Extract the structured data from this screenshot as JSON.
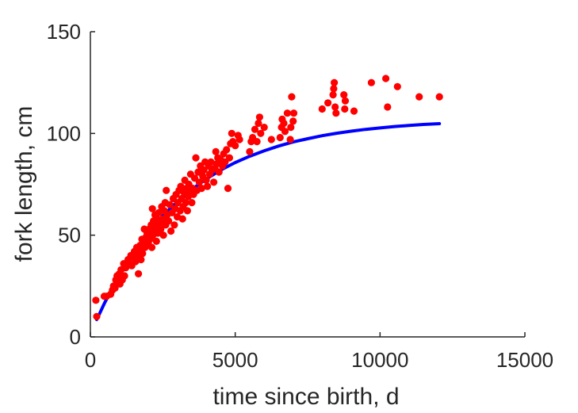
{
  "chart_data": {
    "type": "scatter",
    "title": "",
    "xlabel": "time since birth, d",
    "ylabel": "fork length, cm",
    "xlim": [
      0,
      15000
    ],
    "ylim": [
      0,
      150
    ],
    "xticks": [
      0,
      5000,
      10000,
      15000
    ],
    "yticks": [
      0,
      50,
      100,
      150
    ],
    "xtick_labels": [
      "0",
      "5000",
      "10000",
      "15000"
    ],
    "ytick_labels": [
      "0",
      "50",
      "100",
      "150"
    ],
    "grid": false,
    "legend": "none",
    "colors": {
      "data": "#ff0000",
      "fit": "#0000ff",
      "axis": "#262626"
    },
    "series": [
      {
        "kind": "scatter",
        "points": [
          [
            190,
            18
          ],
          [
            220,
            10
          ],
          [
            480,
            20
          ],
          [
            560,
            20
          ],
          [
            700,
            21
          ],
          [
            760,
            23
          ],
          [
            800,
            25
          ],
          [
            850,
            24
          ],
          [
            880,
            28
          ],
          [
            920,
            30
          ],
          [
            950,
            27
          ],
          [
            1000,
            31
          ],
          [
            1020,
            26
          ],
          [
            1060,
            33
          ],
          [
            1100,
            28
          ],
          [
            1150,
            36
          ],
          [
            1180,
            30
          ],
          [
            1220,
            34
          ],
          [
            1260,
            35
          ],
          [
            1300,
            38
          ],
          [
            1350,
            36
          ],
          [
            1400,
            40
          ],
          [
            1430,
            35
          ],
          [
            1480,
            39
          ],
          [
            1520,
            42
          ],
          [
            1560,
            37
          ],
          [
            1600,
            44
          ],
          [
            1640,
            40
          ],
          [
            1660,
            31
          ],
          [
            1690,
            43
          ],
          [
            1720,
            45
          ],
          [
            1750,
            38
          ],
          [
            1780,
            48
          ],
          [
            1800,
            41
          ],
          [
            1830,
            46
          ],
          [
            1860,
            53
          ],
          [
            1890,
            44
          ],
          [
            1920,
            49
          ],
          [
            1960,
            51
          ],
          [
            2000,
            46
          ],
          [
            2030,
            53
          ],
          [
            2060,
            48
          ],
          [
            2100,
            55
          ],
          [
            2120,
            44
          ],
          [
            2140,
            63
          ],
          [
            2160,
            50
          ],
          [
            2180,
            57
          ],
          [
            2200,
            52
          ],
          [
            2230,
            60
          ],
          [
            2260,
            54
          ],
          [
            2280,
            47
          ],
          [
            2300,
            58
          ],
          [
            2330,
            51
          ],
          [
            2360,
            61
          ],
          [
            2400,
            56
          ],
          [
            2430,
            53
          ],
          [
            2460,
            64
          ],
          [
            2500,
            58
          ],
          [
            2520,
            50
          ],
          [
            2550,
            62
          ],
          [
            2580,
            66
          ],
          [
            2600,
            55
          ],
          [
            2620,
            72
          ],
          [
            2650,
            60
          ],
          [
            2700,
            57
          ],
          [
            2740,
            65
          ],
          [
            2780,
            52
          ],
          [
            2820,
            61
          ],
          [
            2860,
            68
          ],
          [
            2900,
            55
          ],
          [
            2930,
            63
          ],
          [
            2960,
            70
          ],
          [
            3000,
            59
          ],
          [
            3020,
            66
          ],
          [
            3060,
            72
          ],
          [
            3100,
            62
          ],
          [
            3120,
            74
          ],
          [
            3150,
            68
          ],
          [
            3180,
            58
          ],
          [
            3200,
            64
          ],
          [
            3230,
            71
          ],
          [
            3260,
            77
          ],
          [
            3290,
            66
          ],
          [
            3320,
            73
          ],
          [
            3350,
            62
          ],
          [
            3380,
            69
          ],
          [
            3400,
            75
          ],
          [
            3430,
            71
          ],
          [
            3460,
            80
          ],
          [
            3500,
            66
          ],
          [
            3530,
            73
          ],
          [
            3560,
            70
          ],
          [
            3600,
            78
          ],
          [
            3640,
            88
          ],
          [
            3680,
            72
          ],
          [
            3720,
            81
          ],
          [
            3760,
            76
          ],
          [
            3800,
            84
          ],
          [
            3840,
            73
          ],
          [
            3880,
            79
          ],
          [
            3920,
            82
          ],
          [
            3960,
            86
          ],
          [
            4000,
            77
          ],
          [
            4040,
            74
          ],
          [
            4080,
            84
          ],
          [
            4120,
            80
          ],
          [
            4160,
            86
          ],
          [
            4200,
            82
          ],
          [
            4260,
            76
          ],
          [
            4300,
            83
          ],
          [
            4330,
            91
          ],
          [
            4360,
            85
          ],
          [
            4400,
            88
          ],
          [
            4440,
            81
          ],
          [
            4500,
            87
          ],
          [
            4560,
            84
          ],
          [
            4600,
            90
          ],
          [
            4650,
            86
          ],
          [
            4700,
            92
          ],
          [
            4750,
            73
          ],
          [
            4800,
            88
          ],
          [
            4840,
            95
          ],
          [
            4880,
            100
          ],
          [
            4920,
            96
          ],
          [
            5000,
            94
          ],
          [
            5100,
            99
          ],
          [
            5150,
            97
          ],
          [
            5500,
            91
          ],
          [
            5550,
            96
          ],
          [
            5600,
            98
          ],
          [
            5680,
            102
          ],
          [
            5750,
            96
          ],
          [
            5800,
            105
          ],
          [
            5840,
            108
          ],
          [
            5880,
            100
          ],
          [
            6000,
            103
          ],
          [
            6250,
            97
          ],
          [
            6550,
            98
          ],
          [
            6600,
            103
          ],
          [
            6620,
            107
          ],
          [
            6680,
            105
          ],
          [
            6720,
            101
          ],
          [
            6800,
            110
          ],
          [
            6900,
            97
          ],
          [
            6920,
            103
          ],
          [
            6950,
            118
          ],
          [
            7000,
            106
          ],
          [
            7020,
            110
          ],
          [
            8000,
            112
          ],
          [
            8200,
            115
          ],
          [
            8380,
            119
          ],
          [
            8400,
            122
          ],
          [
            8420,
            125
          ],
          [
            8450,
            113
          ],
          [
            8480,
            110
          ],
          [
            8750,
            119
          ],
          [
            8780,
            112
          ],
          [
            8800,
            116
          ],
          [
            9100,
            111
          ],
          [
            9700,
            125
          ],
          [
            10200,
            127
          ],
          [
            10260,
            113
          ],
          [
            10600,
            123
          ],
          [
            11350,
            118
          ],
          [
            12050,
            118
          ]
        ]
      },
      {
        "kind": "line",
        "model": "von Bertalanffy growth curve",
        "points": [
          [
            220,
            8.5
          ],
          [
            500,
            17
          ],
          [
            1000,
            30.3
          ],
          [
            1500,
            41.6
          ],
          [
            2000,
            51.3
          ],
          [
            2500,
            59.5
          ],
          [
            3000,
            66.5
          ],
          [
            3500,
            72.5
          ],
          [
            4000,
            77.6
          ],
          [
            4500,
            82
          ],
          [
            5000,
            85.7
          ],
          [
            5500,
            88.8
          ],
          [
            6000,
            91.5
          ],
          [
            6500,
            93.8
          ],
          [
            7000,
            95.8
          ],
          [
            7500,
            97.4
          ],
          [
            8000,
            98.9
          ],
          [
            8500,
            100.1
          ],
          [
            9000,
            101.1
          ],
          [
            9500,
            102
          ],
          [
            10000,
            102.7
          ],
          [
            10500,
            103.4
          ],
          [
            11000,
            103.9
          ],
          [
            11500,
            104.4
          ],
          [
            12050,
            104.8
          ]
        ]
      }
    ]
  }
}
